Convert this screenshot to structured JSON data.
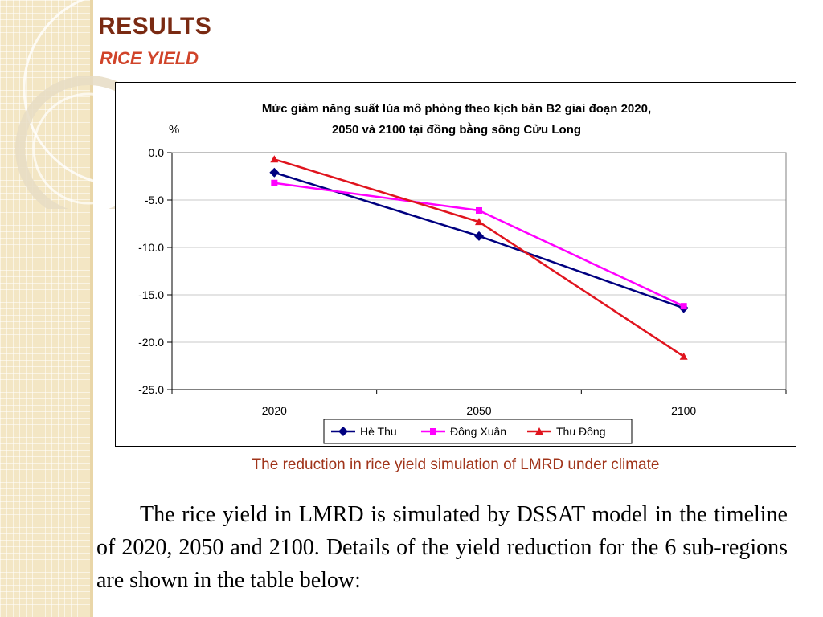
{
  "slide": {
    "title": "RESULTS",
    "subtitle": "RICE YIELD",
    "caption": "The reduction in rice yield simulation of LMRD under climate",
    "body": "The rice yield in LMRD is simulated by DSSAT model in the timeline of 2020, 2050 and 2100. Details of the yield reduction for the 6 sub-regions are shown in the table below:"
  },
  "colors": {
    "title": "#7a2a12",
    "subtitle": "#d0442a",
    "caption": "#a0341a",
    "side_strip": "#f3e6c4"
  },
  "chart_data": {
    "type": "line",
    "title_lines": [
      "Mức giảm năng suất lúa mô phỏng theo kịch bản B2 giai đoạn 2020,",
      "2050 và 2100 tại đồng bằng sông Cửu Long"
    ],
    "ylabel": "%",
    "xlabel": "",
    "categories": [
      "2020",
      "2050",
      "2100"
    ],
    "ylim": [
      -25,
      0
    ],
    "yticks": [
      0,
      -5,
      -10,
      -15,
      -20,
      -25
    ],
    "ytick_labels": [
      "0.0",
      "-5.0",
      "-10.0",
      "-15.0",
      "-20.0",
      "-25.0"
    ],
    "grid": true,
    "legend_position": "bottom",
    "series": [
      {
        "name": "Hè Thu",
        "values": [
          -2.1,
          -8.8,
          -16.4
        ],
        "color": "#000080",
        "marker": "diamond"
      },
      {
        "name": "Đông Xuân",
        "values": [
          -3.2,
          -6.1,
          -16.2
        ],
        "color": "#ff00ff",
        "marker": "square"
      },
      {
        "name": "Thu Đông",
        "values": [
          -0.7,
          -7.3,
          -21.5
        ],
        "color": "#e0141e",
        "marker": "triangle"
      }
    ]
  }
}
